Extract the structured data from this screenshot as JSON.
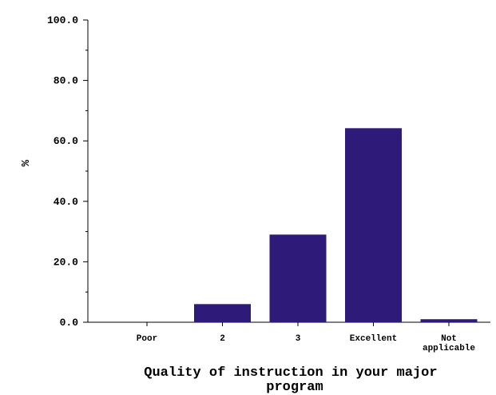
{
  "chart_data": {
    "type": "bar",
    "categories": [
      "Poor",
      "2",
      "3",
      "Excellent",
      "Not applicable"
    ],
    "category_label_lines": [
      [
        "Poor"
      ],
      [
        "2"
      ],
      [
        "3"
      ],
      [
        "Excellent"
      ],
      [
        "Not",
        "applicable"
      ]
    ],
    "values": [
      0.0,
      6.0,
      29.0,
      64.2,
      1.0
    ],
    "xlabel": "Quality of instruction in your major program",
    "xlabel_lines": [
      "Quality of instruction in your major",
      "program"
    ],
    "ylabel": "%",
    "ylim": [
      0,
      100
    ],
    "yticks": [
      0,
      20,
      40,
      60,
      80,
      100
    ],
    "ytick_labels": [
      "0.0",
      "20.0",
      "40.0",
      "60.0",
      "80.0",
      "100.0"
    ],
    "grid": false,
    "bar_color": "#2e1a78"
  }
}
